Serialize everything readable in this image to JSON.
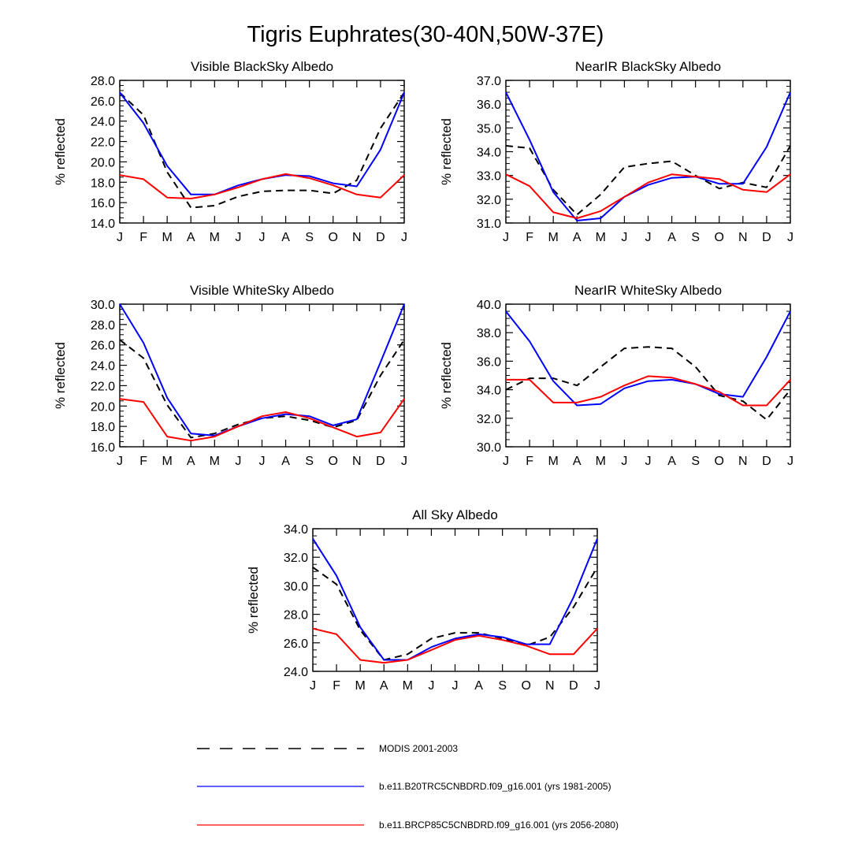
{
  "figure": {
    "title": "Tigris Euphrates(30-40N,50W-37E)"
  },
  "chart_data": [
    {
      "type": "line",
      "title": "Visible BlackSky Albedo",
      "ylabel": "% reflected",
      "categories": [
        "J",
        "F",
        "M",
        "A",
        "M",
        "J",
        "J",
        "A",
        "S",
        "O",
        "N",
        "D",
        "J"
      ],
      "ylim": [
        14.0,
        28.0
      ],
      "yticks": [
        "14.0",
        "16.0",
        "18.0",
        "20.0",
        "22.0",
        "24.0",
        "26.0",
        "28.0"
      ],
      "series": [
        {
          "name": "MODIS 2001-2003",
          "color": "#000000",
          "dash": true,
          "values": [
            26.8,
            24.6,
            19.0,
            15.5,
            15.7,
            16.6,
            17.1,
            17.2,
            17.2,
            16.9,
            18.2,
            23.3,
            26.8
          ]
        },
        {
          "name": "b.e11.B20TRC5CNBDRD.f09_g16.001 (yrs 1981-2005)",
          "color": "#0000ff",
          "dash": false,
          "values": [
            26.8,
            23.8,
            19.6,
            16.8,
            16.8,
            17.7,
            18.3,
            18.7,
            18.6,
            17.9,
            17.6,
            21.2,
            26.8
          ]
        },
        {
          "name": "b.e11.BRCP85C5CNBDRD.f09_g16.001 (yrs 2056-2080)",
          "color": "#ff0000",
          "dash": false,
          "values": [
            18.7,
            18.3,
            16.5,
            16.4,
            16.8,
            17.5,
            18.3,
            18.8,
            18.4,
            17.7,
            16.8,
            16.5,
            18.7
          ]
        }
      ]
    },
    {
      "type": "line",
      "title": "NearIR BlackSky Albedo",
      "ylabel": "% reflected",
      "categories": [
        "J",
        "F",
        "M",
        "A",
        "M",
        "J",
        "J",
        "A",
        "S",
        "O",
        "N",
        "D",
        "J"
      ],
      "ylim": [
        31.0,
        37.0
      ],
      "yticks": [
        "31.0",
        "32.0",
        "33.0",
        "34.0",
        "35.0",
        "36.0",
        "37.0"
      ],
      "series": [
        {
          "name": "MODIS 2001-2003",
          "color": "#000000",
          "dash": true,
          "values": [
            34.25,
            34.15,
            32.4,
            31.35,
            32.2,
            33.35,
            33.5,
            33.6,
            33.0,
            32.45,
            32.7,
            32.5,
            34.25
          ]
        },
        {
          "name": "b.e11.B20TRC5CNBDRD.f09_g16.001 (yrs 1981-2005)",
          "color": "#0000ff",
          "dash": false,
          "values": [
            36.5,
            34.5,
            32.3,
            31.1,
            31.2,
            32.1,
            32.6,
            32.9,
            32.95,
            32.65,
            32.65,
            34.2,
            36.5
          ]
        },
        {
          "name": "b.e11.BRCP85C5CNBDRD.f09_g16.001 (yrs 2056-2080)",
          "color": "#ff0000",
          "dash": false,
          "values": [
            33.05,
            32.55,
            31.45,
            31.2,
            31.5,
            32.1,
            32.7,
            33.05,
            32.95,
            32.85,
            32.4,
            32.3,
            33.05
          ]
        }
      ]
    },
    {
      "type": "line",
      "title": "Visible WhiteSky Albedo",
      "ylabel": "% reflected",
      "categories": [
        "J",
        "F",
        "M",
        "A",
        "M",
        "J",
        "J",
        "A",
        "S",
        "O",
        "N",
        "D",
        "J"
      ],
      "ylim": [
        16.0,
        30.0
      ],
      "yticks": [
        "16.0",
        "18.0",
        "20.0",
        "22.0",
        "24.0",
        "26.0",
        "28.0",
        "30.0"
      ],
      "series": [
        {
          "name": "MODIS 2001-2003",
          "color": "#000000",
          "dash": true,
          "values": [
            26.5,
            24.7,
            20.1,
            16.9,
            17.3,
            18.2,
            18.8,
            19.0,
            18.6,
            17.9,
            18.6,
            23.0,
            26.5
          ]
        },
        {
          "name": "b.e11.B20TRC5CNBDRD.f09_g16.001 (yrs 1981-2005)",
          "color": "#0000ff",
          "dash": false,
          "values": [
            30.0,
            26.2,
            20.8,
            17.3,
            17.1,
            18.0,
            18.8,
            19.2,
            19.0,
            18.1,
            18.7,
            24.3,
            30.0
          ]
        },
        {
          "name": "b.e11.BRCP85C5CNBDRD.f09_g16.001 (yrs 2056-2080)",
          "color": "#ff0000",
          "dash": false,
          "values": [
            20.7,
            20.4,
            17.0,
            16.6,
            17.0,
            18.0,
            19.0,
            19.4,
            18.8,
            17.9,
            17.0,
            17.4,
            20.7
          ]
        }
      ]
    },
    {
      "type": "line",
      "title": "NearIR WhiteSky Albedo",
      "ylabel": "% reflected",
      "categories": [
        "J",
        "F",
        "M",
        "A",
        "M",
        "J",
        "J",
        "A",
        "S",
        "O",
        "N",
        "D",
        "J"
      ],
      "ylim": [
        30.0,
        40.0
      ],
      "yticks": [
        "30.0",
        "32.0",
        "34.0",
        "36.0",
        "38.0",
        "40.0"
      ],
      "series": [
        {
          "name": "MODIS 2001-2003",
          "color": "#000000",
          "dash": true,
          "values": [
            34.0,
            34.8,
            34.8,
            34.3,
            35.6,
            36.9,
            37.0,
            36.9,
            35.6,
            33.6,
            33.2,
            31.9,
            34.0
          ]
        },
        {
          "name": "b.e11.B20TRC5CNBDRD.f09_g16.001 (yrs 1981-2005)",
          "color": "#0000ff",
          "dash": false,
          "values": [
            39.5,
            37.4,
            34.6,
            32.9,
            33.0,
            34.1,
            34.6,
            34.7,
            34.4,
            33.7,
            33.5,
            36.3,
            39.5
          ]
        },
        {
          "name": "b.e11.BRCP85C5CNBDRD.f09_g16.001 (yrs 2056-2080)",
          "color": "#ff0000",
          "dash": false,
          "values": [
            34.7,
            34.7,
            33.1,
            33.1,
            33.5,
            34.3,
            34.95,
            34.85,
            34.4,
            33.85,
            32.9,
            32.9,
            34.7
          ]
        }
      ]
    },
    {
      "type": "line",
      "title": "All Sky Albedo",
      "ylabel": "% reflected",
      "categories": [
        "J",
        "F",
        "M",
        "A",
        "M",
        "J",
        "J",
        "A",
        "S",
        "O",
        "N",
        "D",
        "J"
      ],
      "ylim": [
        24.0,
        34.0
      ],
      "yticks": [
        "24.0",
        "26.0",
        "28.0",
        "30.0",
        "32.0",
        "34.0"
      ],
      "series": [
        {
          "name": "MODIS 2001-2003",
          "color": "#000000",
          "dash": true,
          "values": [
            31.3,
            30.1,
            26.9,
            24.8,
            25.2,
            26.3,
            26.7,
            26.7,
            26.3,
            25.8,
            26.4,
            28.5,
            31.3
          ]
        },
        {
          "name": "b.e11.B20TRC5CNBDRD.f09_g16.001 (yrs 1981-2005)",
          "color": "#0000ff",
          "dash": false,
          "values": [
            33.3,
            30.7,
            27.1,
            24.8,
            24.8,
            25.7,
            26.3,
            26.6,
            26.4,
            25.9,
            25.9,
            29.2,
            33.3
          ]
        },
        {
          "name": "b.e11.BRCP85C5CNBDRD.f09_g16.001 (yrs 2056-2080)",
          "color": "#ff0000",
          "dash": false,
          "values": [
            27.0,
            26.6,
            24.8,
            24.6,
            24.8,
            25.5,
            26.2,
            26.5,
            26.2,
            25.8,
            25.2,
            25.2,
            27.0
          ]
        }
      ]
    }
  ],
  "legend": {
    "placement": "bottom",
    "items": [
      {
        "label": "MODIS 2001-2003",
        "color": "#000000",
        "dash": true
      },
      {
        "label": "b.e11.B20TRC5CNBDRD.f09_g16.001 (yrs 1981-2005)",
        "color": "#0000ff",
        "dash": false
      },
      {
        "label": "b.e11.BRCP85C5CNBDRD.f09_g16.001 (yrs 2056-2080)",
        "color": "#ff0000",
        "dash": false
      }
    ]
  }
}
